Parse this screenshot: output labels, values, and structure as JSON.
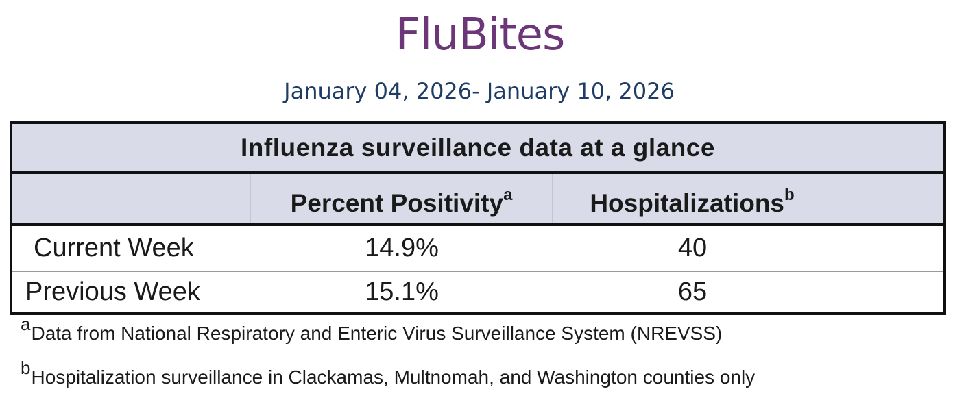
{
  "header": {
    "title": "FluBites",
    "date_range": "January 04, 2026- January 10, 2026"
  },
  "table": {
    "caption": "Influenza surveillance data at a glance",
    "columns": [
      {
        "label": "",
        "footnote": ""
      },
      {
        "label": "Percent Positivity",
        "footnote": "a"
      },
      {
        "label": "Hospitalizations",
        "footnote": "b"
      },
      {
        "label": "",
        "footnote": ""
      }
    ],
    "rows": [
      {
        "label": "Current Week",
        "percent_positivity": "14.9%",
        "hospitalizations": "40"
      },
      {
        "label": "Previous Week",
        "percent_positivity": "15.1%",
        "hospitalizations": "65"
      }
    ]
  },
  "footnotes": [
    {
      "mark": "a",
      "text": "Data from National Respiratory and Enteric Virus Surveillance System (NREVSS)"
    },
    {
      "mark": "b",
      "text": "Hospitalization surveillance in Clackamas, Multnomah, and Washington counties only"
    }
  ],
  "colors": {
    "title": "#6b3778",
    "date_range": "#1f3c64",
    "header_fill": "#d9dce8",
    "border": "#111111"
  }
}
